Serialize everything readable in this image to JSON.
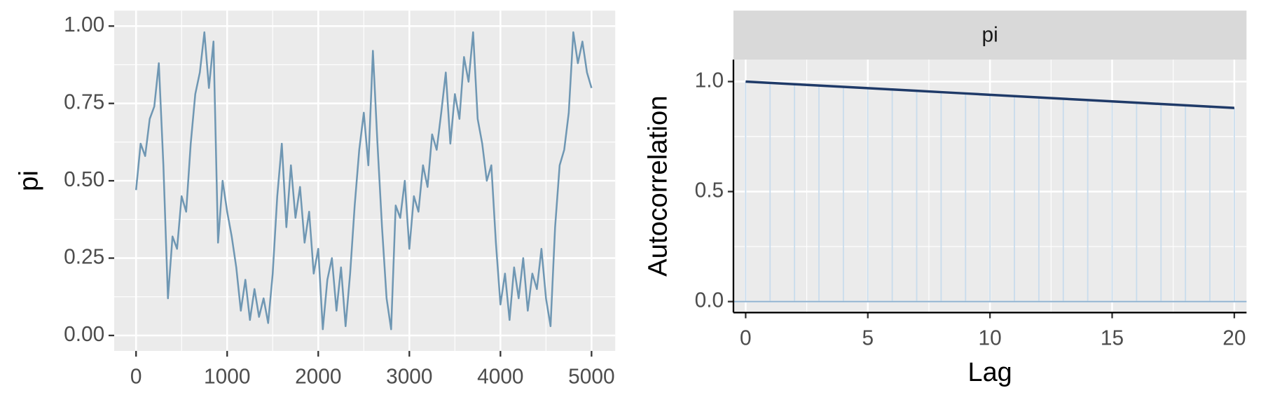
{
  "chart_data": [
    {
      "type": "line",
      "ylabel": "pi",
      "x": [
        0,
        50,
        100,
        150,
        200,
        250,
        300,
        350,
        400,
        450,
        500,
        550,
        600,
        650,
        700,
        750,
        800,
        850,
        900,
        950,
        1000,
        1050,
        1100,
        1150,
        1200,
        1250,
        1300,
        1350,
        1400,
        1450,
        1500,
        1550,
        1600,
        1650,
        1700,
        1750,
        1800,
        1850,
        1900,
        1950,
        2000,
        2050,
        2100,
        2150,
        2200,
        2250,
        2300,
        2350,
        2400,
        2450,
        2500,
        2550,
        2600,
        2650,
        2700,
        2750,
        2800,
        2850,
        2900,
        2950,
        3000,
        3050,
        3100,
        3150,
        3200,
        3250,
        3300,
        3350,
        3400,
        3450,
        3500,
        3550,
        3600,
        3650,
        3700,
        3750,
        3800,
        3850,
        3900,
        3950,
        4000,
        4050,
        4100,
        4150,
        4200,
        4250,
        4300,
        4350,
        4400,
        4450,
        4500,
        4550,
        4600,
        4650,
        4700,
        4750,
        4800,
        4850,
        4900,
        4950,
        5000
      ],
      "series": [
        {
          "color": "#6f97b3",
          "values": [
            0.47,
            0.62,
            0.58,
            0.7,
            0.74,
            0.88,
            0.55,
            0.12,
            0.32,
            0.28,
            0.45,
            0.4,
            0.62,
            0.78,
            0.85,
            0.98,
            0.8,
            0.95,
            0.3,
            0.5,
            0.4,
            0.32,
            0.22,
            0.08,
            0.18,
            0.05,
            0.15,
            0.06,
            0.12,
            0.04,
            0.2,
            0.45,
            0.62,
            0.35,
            0.55,
            0.38,
            0.48,
            0.3,
            0.4,
            0.2,
            0.28,
            0.02,
            0.18,
            0.25,
            0.08,
            0.22,
            0.03,
            0.2,
            0.42,
            0.6,
            0.72,
            0.55,
            0.92,
            0.62,
            0.35,
            0.12,
            0.02,
            0.42,
            0.38,
            0.5,
            0.28,
            0.45,
            0.4,
            0.55,
            0.48,
            0.65,
            0.6,
            0.72,
            0.85,
            0.62,
            0.78,
            0.7,
            0.9,
            0.82,
            0.98,
            0.7,
            0.62,
            0.5,
            0.55,
            0.3,
            0.1,
            0.2,
            0.05,
            0.22,
            0.12,
            0.25,
            0.08,
            0.2,
            0.15,
            0.28,
            0.12,
            0.03,
            0.35,
            0.55,
            0.6,
            0.72,
            0.98,
            0.88,
            0.95,
            0.85,
            0.8
          ]
        }
      ],
      "xlim": [
        -240,
        5260
      ],
      "ylim": [
        -0.05,
        1.05
      ],
      "xticks": [
        0,
        1000,
        2000,
        3000,
        4000,
        5000
      ],
      "yticks": [
        {
          "value": 0,
          "label": "0.00"
        },
        {
          "value": 0.25,
          "label": "0.25"
        },
        {
          "value": 0.5,
          "label": "0.50"
        },
        {
          "value": 0.75,
          "label": "0.75"
        },
        {
          "value": 1,
          "label": "1.00"
        }
      ],
      "grid": true
    },
    {
      "type": "acf",
      "strip": "pi",
      "xlabel": "Lag",
      "ylabel": "Autocorrelation",
      "x": [
        0,
        1,
        2,
        3,
        4,
        5,
        6,
        7,
        8,
        9,
        10,
        11,
        12,
        13,
        14,
        15,
        16,
        17,
        18,
        19,
        20
      ],
      "series": [
        {
          "color": "#1f3a68",
          "bar_color": "#c9dcec",
          "values": [
            1.0,
            0.994,
            0.988,
            0.982,
            0.976,
            0.97,
            0.964,
            0.958,
            0.952,
            0.946,
            0.94,
            0.934,
            0.928,
            0.922,
            0.916,
            0.91,
            0.904,
            0.898,
            0.892,
            0.886,
            0.88
          ]
        }
      ],
      "xlim": [
        -0.5,
        20.5
      ],
      "ylim": [
        -0.05,
        1.1
      ],
      "xticks": [
        0,
        5,
        10,
        15,
        20
      ],
      "yticks": [
        {
          "value": 0,
          "label": "0.0"
        },
        {
          "value": 0.5,
          "label": "0.5"
        },
        {
          "value": 1,
          "label": "1.0"
        }
      ],
      "grid": true
    }
  ]
}
